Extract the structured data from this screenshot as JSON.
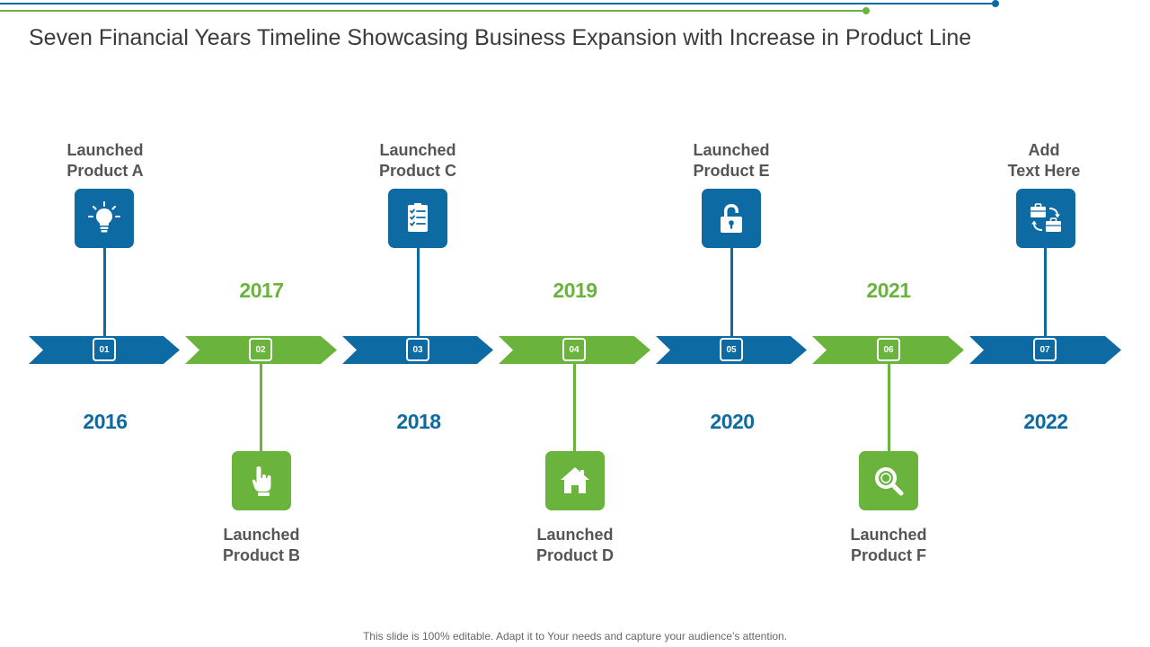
{
  "title": "Seven Financial Years Timeline Showcasing Business Expansion with Increase in Product Line",
  "footer": "This slide is 100% editable. Adapt it to Your needs and capture your audience’s attention.",
  "colors": {
    "blue": "#0d6aa3",
    "green": "#6ab43e",
    "title": "#3a3a3a",
    "label": "#555555"
  },
  "milestones": [
    {
      "num": "01",
      "year": "2016",
      "label_line1": "Launched",
      "label_line2": "Product A",
      "icon": "lightbulb-icon"
    },
    {
      "num": "02",
      "year": "2017",
      "label_line1": "Launched",
      "label_line2": "Product B",
      "icon": "pointing-hand-icon"
    },
    {
      "num": "03",
      "year": "2018",
      "label_line1": "Launched",
      "label_line2": "Product C",
      "icon": "checklist-icon"
    },
    {
      "num": "04",
      "year": "2019",
      "label_line1": "Launched",
      "label_line2": "Product D",
      "icon": "house-icon"
    },
    {
      "num": "05",
      "year": "2020",
      "label_line1": "Launched",
      "label_line2": "Product E",
      "icon": "padlock-icon"
    },
    {
      "num": "06",
      "year": "2021",
      "label_line1": "Launched",
      "label_line2": "Product F",
      "icon": "magnifier-icon"
    },
    {
      "num": "07",
      "year": "2022",
      "label_line1": "Add",
      "label_line2": "Text Here",
      "icon": "briefcase-exchange-icon"
    }
  ]
}
